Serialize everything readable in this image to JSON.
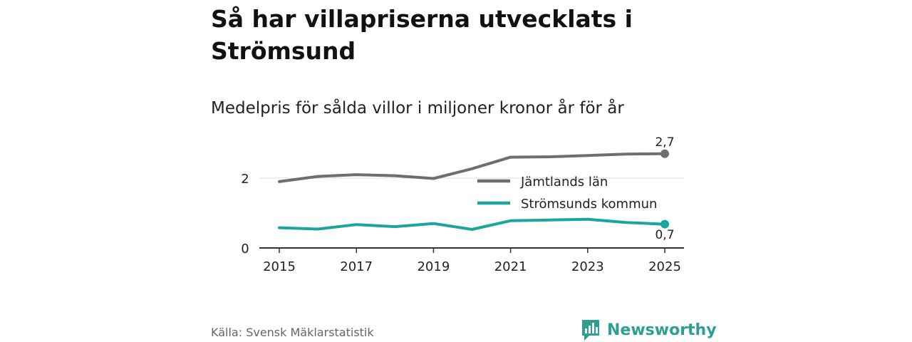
{
  "header": {
    "title": "Så har villapriserna utvecklats i Strömsund",
    "subtitle": "Medelpris för sålda villor i miljoner kronor år för år"
  },
  "footer": {
    "source": "Källa: Svensk Mäklarstatistik",
    "brand": "Newsworthy",
    "brand_icon": "bar-chart-speech-bubble-icon"
  },
  "colors": {
    "jamtland": "#6e6d73",
    "stromsund": "#1aa69b",
    "axis": "#333333",
    "grid": "#dddddd",
    "brand": "#2e9e95"
  },
  "chart_data": {
    "type": "line",
    "title": "Medelpris för sålda villor i miljoner kronor år för år",
    "xlabel": "",
    "ylabel": "",
    "x": [
      2015,
      2016,
      2017,
      2018,
      2019,
      2020,
      2021,
      2022,
      2023,
      2024,
      2025
    ],
    "xticks": [
      2015,
      2017,
      2019,
      2021,
      2023,
      2025
    ],
    "yticks": [
      0,
      2
    ],
    "ylim": [
      0,
      2.8
    ],
    "grid": true,
    "legend_position": "center-right",
    "series": [
      {
        "name": "Jämtlands län",
        "key": "jamtland",
        "values": [
          1.9,
          2.05,
          2.1,
          2.07,
          1.99,
          2.27,
          2.6,
          2.61,
          2.65,
          2.69,
          2.7
        ],
        "end_label": "2,7"
      },
      {
        "name": "Strömsunds kommun",
        "key": "stromsund",
        "values": [
          0.58,
          0.54,
          0.67,
          0.61,
          0.7,
          0.53,
          0.78,
          0.8,
          0.82,
          0.73,
          0.68
        ],
        "end_label": "0,7"
      }
    ]
  }
}
